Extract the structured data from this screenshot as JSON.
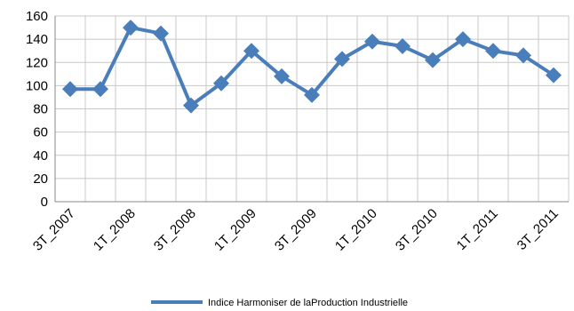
{
  "chart_data": {
    "type": "line",
    "categories": [
      "3T_2007",
      null,
      "1T_2008",
      null,
      "3T_2008",
      null,
      "1T_2009",
      null,
      "3T_2009",
      null,
      "1T_2010",
      null,
      "3T_2010",
      null,
      "1T_2011",
      null,
      "3T_2011"
    ],
    "series": [
      {
        "name": "Indice Harmoniser de laProduction Industrielle",
        "color": "#4a7ebb",
        "values": [
          97,
          97,
          150,
          145,
          83,
          102,
          130,
          108,
          92,
          123,
          138,
          134,
          122,
          140,
          130,
          126,
          109
        ]
      }
    ],
    "ylim": [
      0,
      160
    ],
    "yticks": [
      0,
      20,
      40,
      60,
      80,
      100,
      120,
      140,
      160
    ],
    "grid": true,
    "legend": "bottom"
  }
}
